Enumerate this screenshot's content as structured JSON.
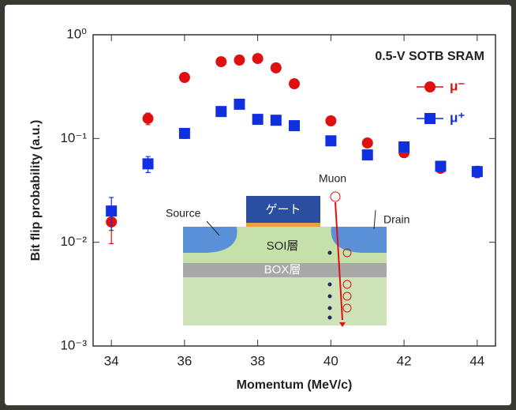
{
  "chart_data": {
    "type": "scatter",
    "annotation": "0.5-V SOTB SRAM",
    "xlabel": "Momentum (MeV/c)",
    "ylabel": "Bit flip probability (a.u.)",
    "x": [
      34,
      35,
      36,
      37,
      37.5,
      38,
      38.5,
      39,
      40,
      41,
      42,
      43,
      44
    ],
    "series": [
      {
        "name": "μ⁻",
        "color": "#e01010",
        "marker": "circle",
        "values": [
          0.0157,
          0.156,
          0.388,
          0.55,
          0.57,
          0.59,
          0.48,
          0.337,
          0.148,
          0.0906,
          0.073,
          0.0516,
          0.047
        ],
        "errors": [
          0.006,
          0.02,
          0.03,
          0.04,
          0.04,
          0.04,
          0.04,
          0.03,
          0.015,
          0.009,
          0.007,
          0.005,
          0.005
        ]
      },
      {
        "name": "μ⁺",
        "color": "#1030e0",
        "marker": "square",
        "values": [
          0.02,
          0.057,
          0.112,
          0.182,
          0.214,
          0.153,
          0.15,
          0.133,
          0.095,
          0.0695,
          0.083,
          0.054,
          0.048
        ],
        "errors": [
          0.007,
          0.01,
          0.012,
          0.015,
          0.015,
          0.012,
          0.012,
          0.01,
          0.008,
          0.006,
          0.007,
          0.006,
          0.006
        ]
      }
    ],
    "xlim": [
      33.5,
      44.5
    ],
    "xticks": [
      34,
      36,
      38,
      40,
      42,
      44
    ],
    "ylim": [
      0.001,
      1
    ],
    "ylog": true,
    "yticks": [
      {
        "value": 1,
        "label": "10⁰"
      },
      {
        "value": 0.1,
        "label": "10⁻¹"
      },
      {
        "value": 0.01,
        "label": "10⁻²"
      },
      {
        "value": 0.001,
        "label": "10⁻³"
      }
    ],
    "legend": "upper right",
    "inset_labels": {
      "source": "Source",
      "drain": "Drain",
      "muon": "Muon",
      "gate": "ゲート",
      "soi": "SOI層",
      "box": "BOX層"
    }
  }
}
